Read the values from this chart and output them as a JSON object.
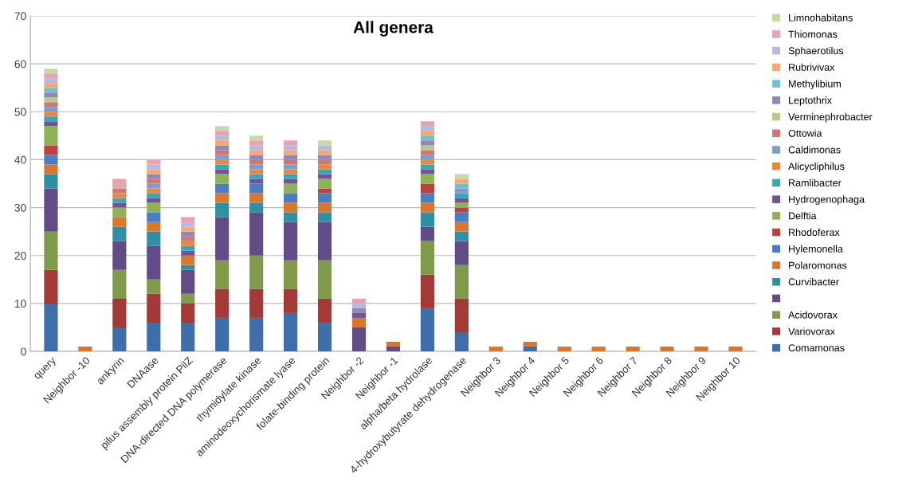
{
  "chart_data": {
    "type": "bar",
    "title": "All genera",
    "stacked": true,
    "categories": [
      "query",
      "Neighbor -10",
      "ankyrin",
      "DNAase",
      "pilus assembly protein PilZ",
      "DNA-directed DNA polymerase",
      "thymidylate kinase",
      "aminodeoxychorismate lyase",
      "folate-binding protein",
      "Neighbor -2",
      "Neighbor -1",
      "alpha/beta hydrolase",
      "4-hydroxybutyrate dehydrogenase",
      "Neighbor 3",
      "Neighbor 4",
      "Neighbor 5",
      "Neighbor 6",
      "Neighbor 7",
      "Neighbor 8",
      "Neighbor 9",
      "Neighbor 10"
    ],
    "series": [
      {
        "name": "Comamonas",
        "color": "#3f6fab",
        "values": [
          10,
          0,
          5,
          6,
          6,
          7,
          7,
          8,
          6,
          0,
          0,
          9,
          4,
          0,
          1,
          0,
          0,
          0,
          0,
          0,
          0
        ]
      },
      {
        "name": "Variovorax",
        "color": "#a33a37",
        "values": [
          7,
          0,
          6,
          6,
          4,
          6,
          6,
          5,
          5,
          0,
          0,
          7,
          7,
          0,
          0,
          0,
          0,
          0,
          0,
          0,
          0
        ]
      },
      {
        "name": "Acidovorax",
        "color": "#7f9a48",
        "values": [
          8,
          0,
          6,
          3,
          2,
          6,
          7,
          6,
          8,
          0,
          0,
          7,
          7,
          0,
          0,
          0,
          0,
          0,
          0,
          0,
          0
        ]
      },
      {
        "color": "#614c87",
        "values": [
          9,
          0,
          6,
          7,
          5,
          9,
          9,
          8,
          8,
          5,
          1,
          3,
          5,
          0,
          0,
          0,
          0,
          0,
          0,
          0,
          0
        ]
      },
      {
        "name": "Curvibacter",
        "color": "#2f8fa5",
        "values": [
          3,
          0,
          3,
          3,
          1,
          3,
          2,
          2,
          2,
          0,
          0,
          3,
          2,
          0,
          0,
          0,
          0,
          0,
          0,
          0,
          0
        ]
      },
      {
        "name": "Polaromonas",
        "color": "#d9772e",
        "values": [
          2,
          1,
          2,
          2,
          2,
          2,
          2,
          2,
          2,
          2,
          1,
          2,
          2,
          1,
          1,
          1,
          1,
          1,
          1,
          1,
          1
        ]
      },
      {
        "name": "Hylemonella",
        "color": "#4a7ec4",
        "values": [
          2,
          0,
          0,
          2,
          0,
          2,
          2,
          2,
          2,
          0,
          0,
          2,
          2,
          0,
          0,
          0,
          0,
          0,
          0,
          0,
          0
        ]
      },
      {
        "name": "Rhodoferax",
        "color": "#c1403d",
        "values": [
          2,
          0,
          0,
          0,
          0,
          0,
          0,
          0,
          1,
          0,
          0,
          2,
          1,
          0,
          0,
          0,
          0,
          0,
          0,
          0,
          0
        ]
      },
      {
        "name": "Delftia",
        "color": "#8eb255",
        "values": [
          4,
          0,
          2,
          2,
          0,
          2,
          0,
          2,
          2,
          0,
          0,
          2,
          1,
          0,
          0,
          0,
          0,
          0,
          0,
          0,
          0
        ]
      },
      {
        "name": "Hydrogenophaga",
        "color": "#6e5597",
        "values": [
          1,
          0,
          1,
          1,
          1,
          1,
          1,
          1,
          1,
          1,
          0,
          1,
          1,
          0,
          0,
          0,
          0,
          0,
          0,
          0,
          0
        ]
      },
      {
        "name": "Ramlibacter",
        "color": "#3aa5b8",
        "values": [
          1,
          0,
          1,
          1,
          1,
          1,
          1,
          1,
          1,
          0,
          0,
          1,
          1,
          0,
          0,
          0,
          0,
          0,
          0,
          0,
          0
        ]
      },
      {
        "name": "Alicycliphilus",
        "color": "#e9883d",
        "values": [
          1,
          0,
          1,
          1,
          1,
          1,
          1,
          1,
          1,
          0,
          0,
          1,
          0,
          0,
          0,
          0,
          0,
          0,
          0,
          0,
          0
        ]
      },
      {
        "name": "Caldimonas",
        "color": "#7b9dd0",
        "values": [
          1,
          0,
          0,
          1,
          0,
          1,
          1,
          1,
          0,
          0,
          0,
          1,
          1,
          0,
          0,
          0,
          0,
          0,
          0,
          0,
          0
        ]
      },
      {
        "name": "Ottowia",
        "color": "#d27672",
        "values": [
          1,
          0,
          1,
          1,
          1,
          1,
          1,
          1,
          1,
          0,
          0,
          1,
          0,
          0,
          0,
          0,
          0,
          0,
          0,
          0,
          0
        ]
      },
      {
        "name": "Verminephrobacter",
        "color": "#b4c98a",
        "values": [
          1,
          0,
          0,
          0,
          0,
          0,
          0,
          0,
          0,
          0,
          0,
          1,
          0,
          0,
          0,
          0,
          0,
          0,
          0,
          0,
          0
        ]
      },
      {
        "name": "Leptothrix",
        "color": "#9486b8",
        "values": [
          1,
          0,
          0,
          1,
          1,
          1,
          1,
          1,
          1,
          1,
          0,
          1,
          0,
          0,
          0,
          0,
          0,
          0,
          0,
          0,
          0
        ]
      },
      {
        "name": "Methylibium",
        "color": "#6ec0d0",
        "values": [
          1,
          0,
          0,
          0,
          0,
          0,
          0,
          0,
          0,
          0,
          0,
          1,
          1,
          0,
          0,
          0,
          0,
          0,
          0,
          0,
          0
        ]
      },
      {
        "name": "Rubrivivax",
        "color": "#f5a872",
        "values": [
          1,
          0,
          0,
          1,
          1,
          1,
          1,
          1,
          1,
          0,
          0,
          1,
          1,
          0,
          0,
          0,
          0,
          0,
          0,
          0,
          0
        ]
      },
      {
        "name": "Sphaerotilus",
        "color": "#b8b8e0",
        "values": [
          1,
          0,
          0,
          1,
          1,
          1,
          1,
          1,
          1,
          1,
          0,
          1,
          0,
          0,
          0,
          0,
          0,
          0,
          0,
          0,
          0
        ]
      },
      {
        "name": "Thiomonas",
        "color": "#e8a2b0",
        "values": [
          1,
          0,
          2,
          1,
          1,
          1,
          1,
          1,
          0,
          1,
          0,
          1,
          0,
          0,
          0,
          0,
          0,
          0,
          0,
          0,
          0
        ]
      },
      {
        "name": "Limnohabitans",
        "color": "#c8d9a8",
        "values": [
          1,
          0,
          0,
          0,
          0,
          1,
          1,
          0,
          1,
          0,
          0,
          0,
          1,
          0,
          0,
          0,
          0,
          0,
          0,
          0,
          0
        ]
      }
    ],
    "ylim": [
      0,
      70
    ],
    "yticks": [
      0,
      10,
      20,
      30,
      40,
      50,
      60,
      70
    ],
    "grid": "y",
    "legend": "right"
  }
}
